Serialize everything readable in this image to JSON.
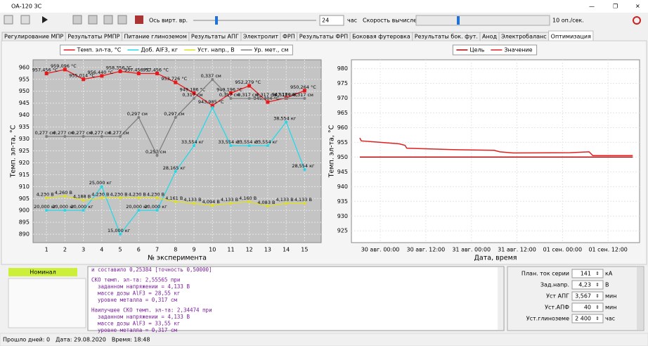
{
  "window": {
    "title": "ОА-120 ЗС"
  },
  "toolbar": {
    "virtual_time_label": "Ось вирт. вр.",
    "hours_value": "24",
    "hours_unit": "час",
    "speed_label": "Скорость вычислений",
    "speed_value": "10 оп./сек."
  },
  "tabs": [
    "Регулирование МПР",
    "Результаты РМПР",
    "Питание глиноземом",
    "Результаты АПГ",
    "Электролит",
    "ФРП",
    "Результаты ФРП",
    "Боковая футеровка",
    "Результаты бок. фут.",
    "Анод",
    "Электробаланс",
    "Оптимизация"
  ],
  "active_tab": 11,
  "chart_data": [
    {
      "type": "line",
      "xlabel": "№ эксперимента",
      "ylabel": "Темп. эл-та, °C",
      "legend": "top",
      "grid": true,
      "x": [
        1,
        2,
        3,
        4,
        5,
        6,
        7,
        8,
        9,
        10,
        11,
        12,
        13,
        14,
        15
      ],
      "xlim": [
        0.27,
        15.9
      ],
      "xticks": [
        1,
        2,
        3,
        4,
        5,
        6,
        7,
        8,
        9,
        10,
        11,
        12,
        13,
        14,
        15
      ],
      "ylim": [
        886.5,
        963.2
      ],
      "yticks": [
        890,
        895,
        900,
        905,
        910,
        915,
        920,
        925,
        930,
        935,
        940,
        945,
        950,
        955,
        960
      ],
      "series": [
        {
          "name": "Темп. эл-та, °C",
          "color": "#e8191b",
          "values": [
            957.456,
            959.096,
            955.014,
            956.44,
            958.356,
            957.456,
            957.456,
            953.726,
            949.186,
            943.985,
            949.196,
            952.279,
            945.484,
            947.186,
            950.264
          ],
          "value_labels": [
            "957,456 °C",
            "959,096 °C",
            "955,014 °C",
            "956,440 °C",
            "958,356 °C",
            "957,456 °C",
            "957,456 °C",
            "953,726 °C",
            "949,186 °C",
            "943,985 °C",
            "949,196 °C",
            "952,279 °C",
            "945,484 °C",
            "947,186 °C",
            "950,264 °C"
          ]
        },
        {
          "name": "Доб. AlF3, кг",
          "color": "#28d8e8",
          "values": [
            20,
            20,
            20,
            25,
            15,
            20,
            20,
            28.165,
            33.554,
            41.554,
            33.554,
            33.554,
            33.554,
            38.554,
            28.554
          ],
          "value_labels": [
            "20,000 кг",
            "20,000 кг",
            "20,000 кг",
            "25,000 кг",
            "15,000 кг",
            "20,000 кг",
            "20,000 кг",
            "28,165 кг",
            "33,554 кг",
            null,
            "33,554 кг",
            "33,554 кг",
            "33,554 кг",
            "38,554 кг",
            "28,554 кг"
          ]
        },
        {
          "name": "Уст. напр., В",
          "color": "#e0e020",
          "values": [
            4.23,
            4.26,
            4.188,
            4.23,
            4.23,
            4.23,
            4.23,
            4.161,
            4.133,
            4.094,
            4.133,
            4.16,
            4.083,
            4.133,
            4.133
          ],
          "value_labels": [
            "4,230 В",
            "4,260 В",
            "4,188 В",
            "4,230 В",
            "4,230 В",
            "4,230 В",
            "4,230 В",
            "4,161 В",
            "4,133 В",
            "4,094 В",
            "4,133 В",
            "4,160 В",
            "4,083 В",
            "4,133 В",
            "4,133 В"
          ]
        },
        {
          "name": "Ур. мет., см",
          "color": "#808080",
          "values": [
            0.277,
            0.277,
            0.277,
            0.277,
            0.277,
            0.297,
            0.257,
            0.297,
            0.317,
            0.337,
            0.317,
            0.317,
            0.317,
            0.317,
            0.317
          ],
          "value_labels": [
            "0,277 см",
            "0,277 см",
            "0,277 см",
            "0,277 см",
            "0,277 см",
            "0,297 см",
            "0,257 см",
            "0,297 см",
            "0,317 см",
            "0,337 см",
            "0,317 см",
            "0,317 см",
            "0,317 см",
            "0,317 см",
            "0,317 см"
          ]
        }
      ]
    },
    {
      "type": "line",
      "xlabel": "Дата, время",
      "ylabel": "Темп. эл-та, °C",
      "legend": "top",
      "grid": true,
      "xlim": [
        -7.6,
        68.3
      ],
      "xticks": [
        {
          "value": 0,
          "label": "30 авг. 00:00"
        },
        {
          "value": 12,
          "label": "30 авг. 12:00"
        },
        {
          "value": 24,
          "label": "31 авг. 00:00"
        },
        {
          "value": 36,
          "label": "31 авг. 12:00"
        },
        {
          "value": 48,
          "label": "01 сен. 00:00"
        },
        {
          "value": 60,
          "label": "01 сен. 12:00"
        }
      ],
      "ylim": [
        921,
        983
      ],
      "yticks": [
        925,
        930,
        935,
        940,
        945,
        950,
        955,
        960,
        965,
        970,
        975,
        980
      ],
      "series": [
        {
          "name": "Цель",
          "color": "#b00000",
          "x": [
            -5.4,
            66.5
          ],
          "values": [
            950,
            950
          ]
        },
        {
          "name": "Значение",
          "color": "#e02020",
          "x": [
            -5.4,
            -5,
            0,
            5,
            6.5,
            7,
            20,
            30,
            31.5,
            35,
            50,
            55,
            56,
            66.5
          ],
          "values": [
            956.5,
            955.5,
            955,
            954.5,
            954,
            953,
            952.5,
            952.3,
            951.8,
            951.4,
            951.5,
            951.8,
            950.5,
            950.5
          ]
        }
      ]
    }
  ],
  "status_indicator": "Номинал",
  "log": [
    "и составило 0,25384 [точность 0,50000]",
    "СКО темп. эл-та: 2,55565 при",
    "  заданном напряжении = 4,133 В",
    "  массе дозы AlF3 = 28,55 кг",
    "  уровне металла = 0,317 см",
    "Наилучшее СКО темп. эл-та: 2,34474 при",
    "  заданном напряжении = 4,133 В",
    "  массе дозы AlF3 = 33,55 кг",
    "  уровне металла = 0,317 см"
  ],
  "parameters": [
    {
      "label": "План. ток серии",
      "value": "141",
      "unit": "кА"
    },
    {
      "label": "Зад.напр.",
      "value": "4,23",
      "unit": "В"
    },
    {
      "label": "Уст АПГ",
      "value": "3,567",
      "unit": "мин"
    },
    {
      "label": "Уст.АПФ",
      "value": "40",
      "unit": "мин"
    },
    {
      "label": "Уст.глиноземе",
      "value": "2 400",
      "unit": "час"
    }
  ],
  "status_bar": [
    "Прошло дней: 0",
    "Дата: 29.08.2020",
    "Время: 18:48"
  ]
}
